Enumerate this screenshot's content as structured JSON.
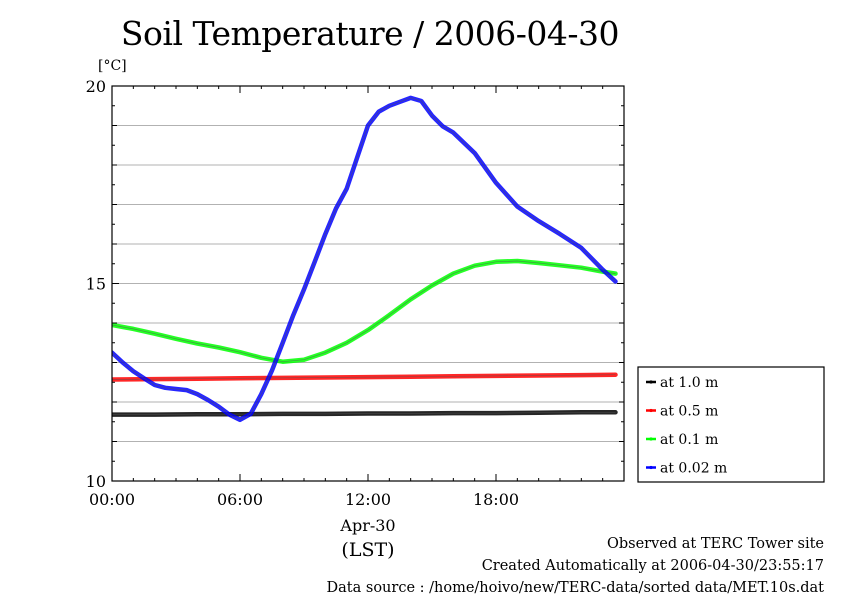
{
  "chart_data": {
    "type": "line",
    "title": "Soil Temperature / 2006-04-30",
    "ylabel": "[°C]",
    "ylim": [
      10,
      20
    ],
    "yticks": [
      10,
      15,
      20
    ],
    "xlim": [
      0,
      24
    ],
    "xticks": [
      {
        "value": 0,
        "label": "00:00"
      },
      {
        "value": 6,
        "label": "06:00"
      },
      {
        "value": 12,
        "label": "12:00"
      },
      {
        "value": 18,
        "label": "18:00"
      }
    ],
    "xlabel_date": "Apr-30",
    "xlabel_unit": "(LST)",
    "grid": true,
    "legend_position": "right",
    "series": [
      {
        "name": "at 1.0 m",
        "color": "#000000",
        "x": [
          0,
          2,
          4,
          6,
          8,
          10,
          12,
          14,
          16,
          18,
          20,
          22,
          23.6
        ],
        "y": [
          11.68,
          11.68,
          11.69,
          11.69,
          11.7,
          11.7,
          11.71,
          11.71,
          11.72,
          11.72,
          11.73,
          11.74,
          11.74
        ]
      },
      {
        "name": "at 0.5 m",
        "color": "#ff0000",
        "x": [
          0,
          2,
          4,
          6,
          8,
          10,
          12,
          14,
          16,
          18,
          20,
          22,
          23.6
        ],
        "y": [
          12.57,
          12.58,
          12.59,
          12.6,
          12.61,
          12.62,
          12.63,
          12.64,
          12.65,
          12.66,
          12.67,
          12.68,
          12.69
        ]
      },
      {
        "name": "at 0.1 m",
        "color": "#00ff00",
        "x": [
          0,
          1,
          2,
          3,
          4,
          5,
          6,
          7,
          8,
          9,
          10,
          11,
          12,
          13,
          14,
          15,
          16,
          17,
          18,
          19,
          20,
          21,
          22,
          23,
          23.6
        ],
        "y": [
          13.95,
          13.85,
          13.73,
          13.6,
          13.48,
          13.38,
          13.26,
          13.12,
          13.02,
          13.07,
          13.25,
          13.5,
          13.82,
          14.2,
          14.6,
          14.95,
          15.25,
          15.45,
          15.55,
          15.57,
          15.52,
          15.46,
          15.4,
          15.3,
          15.25
        ]
      },
      {
        "name": "at 0.02 m",
        "color": "#0000ff",
        "x": [
          0,
          0.5,
          1,
          1.5,
          2,
          2.5,
          3,
          3.5,
          4,
          4.5,
          5,
          5.5,
          6,
          6.5,
          7,
          7.5,
          8,
          8.5,
          9,
          9.5,
          10,
          10.5,
          11,
          11.5,
          12,
          12.5,
          13,
          13.5,
          14,
          14.5,
          15,
          15.5,
          16,
          17,
          18,
          19,
          20,
          21,
          22,
          23,
          23.6
        ],
        "y": [
          13.25,
          13.0,
          12.78,
          12.6,
          12.43,
          12.36,
          12.33,
          12.3,
          12.2,
          12.05,
          11.88,
          11.68,
          11.55,
          11.7,
          12.2,
          12.8,
          13.5,
          14.2,
          14.85,
          15.55,
          16.25,
          16.9,
          17.4,
          18.2,
          19.0,
          19.35,
          19.5,
          19.6,
          19.7,
          19.62,
          19.25,
          18.98,
          18.82,
          18.3,
          17.55,
          16.95,
          16.58,
          16.25,
          15.9,
          15.35,
          15.05
        ]
      }
    ]
  },
  "footer": {
    "line1": "Observed at TERC Tower site",
    "line2": "Created Automatically at 2006-04-30/23:55:17",
    "line3": "Data source : /home/hoivo/new/TERC-data/sorted  data/MET.10s.dat"
  }
}
